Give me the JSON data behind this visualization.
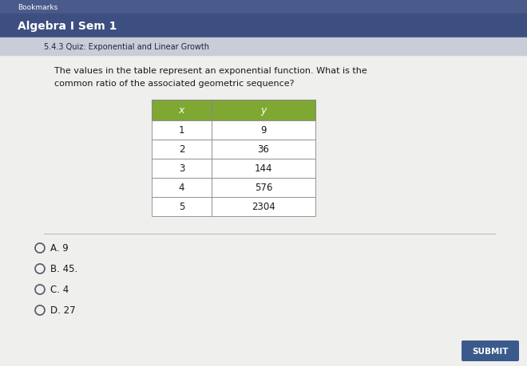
{
  "bg_color": "#e8e8e6",
  "bookmarks_bar_color": "#4a5a8a",
  "bookmarks_text_color": "#ffffff",
  "bookmarks_text": "Bookmarks",
  "nav_bar_color": "#3d4f80",
  "nav_bar_text": "Algebra I Sem 1",
  "nav_bar_text_color": "#ffffff",
  "sub_bar_color": "#c8cdd8",
  "sub_bar_text": "5.4.3 Quiz: Exponential and Linear Growth",
  "sub_bar_text_color": "#222244",
  "content_bg": "#efefed",
  "question_line1": "The values in the table represent an exponential function. What is the",
  "question_line2": "common ratio of the associated geometric sequence?",
  "question_color": "#1a1a1a",
  "table_header_color": "#7ea832",
  "table_header_text_color": "#ffffff",
  "table_border_color": "#888888",
  "table_bg_color": "#ffffff",
  "table_x_label": "x",
  "table_y_label": "y",
  "table_x_values": [
    "1",
    "2",
    "3",
    "4",
    "5"
  ],
  "table_y_values": [
    "9",
    "36",
    "144",
    "576",
    "2304"
  ],
  "options": [
    "A. 9",
    "B. 45.",
    "C. 4",
    "D. 27"
  ],
  "option_color": "#1a1a1a",
  "submit_btn_color": "#3a5a8c",
  "submit_btn_text": "SUBMIT",
  "submit_btn_text_color": "#ffffff",
  "divider_color": "#bbbbbb",
  "circle_fill": "#efefed",
  "circle_edge": "#555566"
}
